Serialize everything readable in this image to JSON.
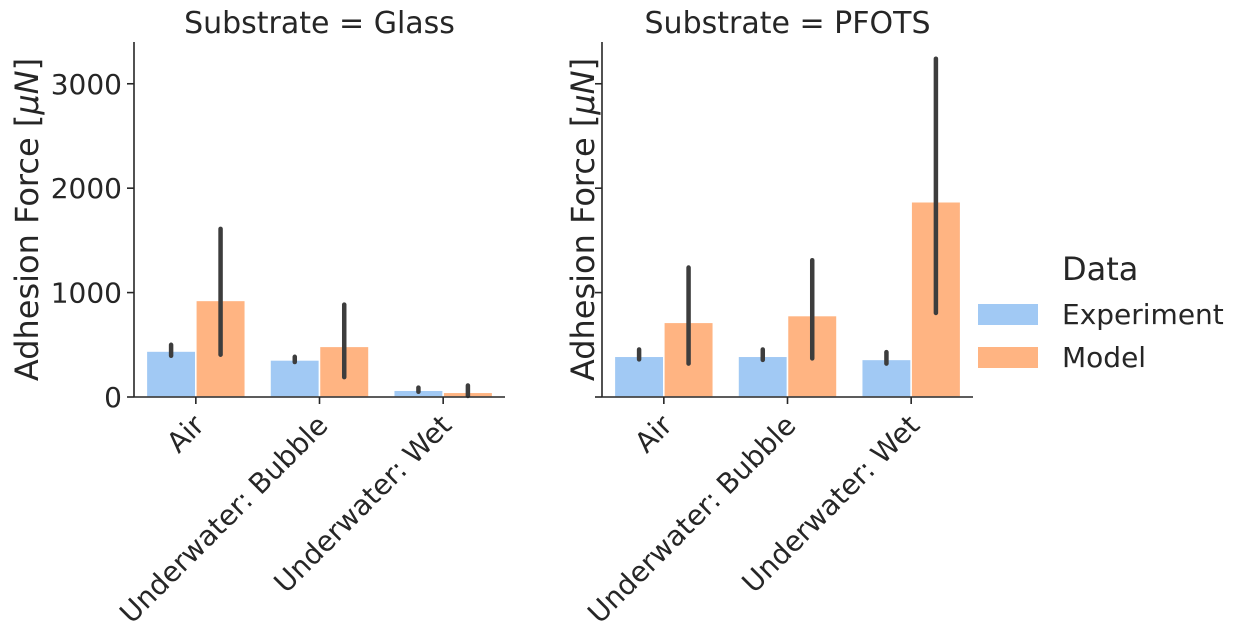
{
  "chart_data": {
    "type": "bar",
    "ylabel": "Adhesion Force [",
    "ylabel_unit": "μN",
    "ylabel_close": "]",
    "ylim": [
      0,
      3400
    ],
    "yticks": [
      0,
      1000,
      2000,
      3000
    ],
    "categories": [
      "Air",
      "Underwater: Bubble",
      "Underwater: Wet"
    ],
    "legend": {
      "title": "Data",
      "placement": "right",
      "entries": [
        {
          "name": "Experiment",
          "color": "#a1c9f4"
        },
        {
          "name": "Model",
          "color": "#ffb482"
        }
      ]
    },
    "panels": [
      {
        "title": "Substrate = Glass",
        "series": [
          {
            "name": "Experiment",
            "values": [
              440,
              355,
              65
            ],
            "error_low": [
              395,
              335,
              50
            ],
            "error_high": [
              500,
              385,
              90
            ]
          },
          {
            "name": "Model",
            "values": [
              925,
              485,
              45
            ],
            "error_low": [
              405,
              190,
              10
            ],
            "error_high": [
              1610,
              885,
              110
            ]
          }
        ]
      },
      {
        "title": "Substrate = PFOTS",
        "series": [
          {
            "name": "Experiment",
            "values": [
              390,
              390,
              360
            ],
            "error_low": [
              360,
              355,
              320
            ],
            "error_high": [
              455,
              455,
              430
            ]
          },
          {
            "name": "Model",
            "values": [
              715,
              780,
              1870
            ],
            "error_low": [
              320,
              370,
              805
            ],
            "error_high": [
              1240,
              1310,
              3240
            ]
          }
        ]
      }
    ]
  }
}
